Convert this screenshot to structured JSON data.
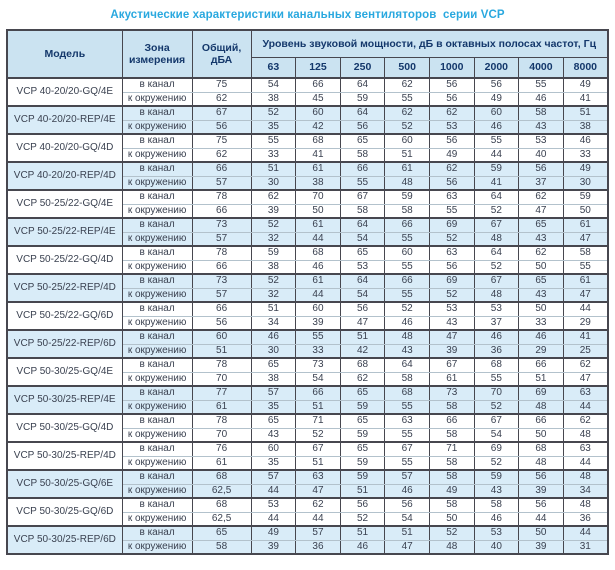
{
  "title": "Акустические характеристики канальных вентиляторов  серии VCP",
  "colors": {
    "title": "#29a8df",
    "header_background": "#cbe3f1",
    "header_text": "#14386b",
    "row_highlight": "#d9ecf8",
    "border_dark": "#47474f",
    "border_light": "#b3c2cc",
    "data_text": "#3a4150",
    "page_background": "#ffffff"
  },
  "table": {
    "headers": {
      "model": "Модель",
      "zone": "Зона измерения",
      "total_line1": "Общий,",
      "total_line2": "дБА",
      "spl": "Уровень звуковой мощности, дБ в октавных полосах частот, Гц",
      "frequencies": [
        "63",
        "125",
        "250",
        "500",
        "1000",
        "2000",
        "4000",
        "8000"
      ]
    },
    "models": [
      {
        "name": "VCP 40-20/20-GQ/4E",
        "highlighted": false,
        "rows": [
          {
            "zone": "в канал",
            "total": "75",
            "values": [
              "54",
              "66",
              "64",
              "62",
              "56",
              "56",
              "55",
              "49"
            ]
          },
          {
            "zone": "к окружению",
            "total": "62",
            "values": [
              "38",
              "45",
              "59",
              "55",
              "56",
              "49",
              "46",
              "41"
            ]
          }
        ]
      },
      {
        "name": "VCP 40-20/20-REP/4E",
        "highlighted": true,
        "rows": [
          {
            "zone": "в канал",
            "total": "67",
            "values": [
              "52",
              "60",
              "64",
              "62",
              "62",
              "60",
              "58",
              "51"
            ]
          },
          {
            "zone": "к окружению",
            "total": "56",
            "values": [
              "35",
              "42",
              "56",
              "52",
              "53",
              "46",
              "43",
              "38"
            ]
          }
        ]
      },
      {
        "name": "VCP 40-20/20-GQ/4D",
        "highlighted": false,
        "rows": [
          {
            "zone": "в канал",
            "total": "75",
            "values": [
              "55",
              "68",
              "65",
              "60",
              "56",
              "55",
              "53",
              "46"
            ]
          },
          {
            "zone": "к окружению",
            "total": "62",
            "values": [
              "33",
              "41",
              "58",
              "51",
              "49",
              "44",
              "40",
              "33"
            ]
          }
        ]
      },
      {
        "name": "VCP 40-20/20-REP/4D",
        "highlighted": true,
        "rows": [
          {
            "zone": "в канал",
            "total": "66",
            "values": [
              "51",
              "61",
              "66",
              "61",
              "62",
              "59",
              "56",
              "49"
            ]
          },
          {
            "zone": "к окружению",
            "total": "57",
            "values": [
              "30",
              "38",
              "55",
              "48",
              "56",
              "41",
              "37",
              "30"
            ]
          }
        ]
      },
      {
        "name": "VCP 50-25/22-GQ/4E",
        "highlighted": false,
        "rows": [
          {
            "zone": "в канал",
            "total": "78",
            "values": [
              "62",
              "70",
              "67",
              "59",
              "63",
              "64",
              "62",
              "59"
            ]
          },
          {
            "zone": "к окружению",
            "total": "66",
            "values": [
              "39",
              "50",
              "58",
              "58",
              "55",
              "52",
              "47",
              "50"
            ]
          }
        ]
      },
      {
        "name": "VCP 50-25/22-REP/4E",
        "highlighted": true,
        "rows": [
          {
            "zone": "в канал",
            "total": "73",
            "values": [
              "52",
              "61",
              "64",
              "66",
              "69",
              "67",
              "65",
              "61"
            ]
          },
          {
            "zone": "к окружению",
            "total": "57",
            "values": [
              "32",
              "44",
              "54",
              "55",
              "52",
              "48",
              "43",
              "47"
            ]
          }
        ]
      },
      {
        "name": "VCP 50-25/22-GQ/4D",
        "highlighted": false,
        "rows": [
          {
            "zone": "в канал",
            "total": "78",
            "values": [
              "59",
              "68",
              "65",
              "60",
              "63",
              "64",
              "62",
              "58"
            ]
          },
          {
            "zone": "к окружению",
            "total": "66",
            "values": [
              "38",
              "46",
              "53",
              "55",
              "56",
              "52",
              "50",
              "55"
            ]
          }
        ]
      },
      {
        "name": "VCP 50-25/22-REP/4D",
        "highlighted": true,
        "rows": [
          {
            "zone": "в канал",
            "total": "73",
            "values": [
              "52",
              "61",
              "64",
              "66",
              "69",
              "67",
              "65",
              "61"
            ]
          },
          {
            "zone": "к окружению",
            "total": "57",
            "values": [
              "32",
              "44",
              "54",
              "55",
              "52",
              "48",
              "43",
              "47"
            ]
          }
        ]
      },
      {
        "name": "VCP 50-25/22-GQ/6D",
        "highlighted": false,
        "rows": [
          {
            "zone": "в канал",
            "total": "66",
            "values": [
              "51",
              "60",
              "56",
              "52",
              "53",
              "53",
              "50",
              "44"
            ]
          },
          {
            "zone": "к окружению",
            "total": "56",
            "values": [
              "34",
              "39",
              "47",
              "46",
              "43",
              "37",
              "33",
              "29"
            ]
          }
        ]
      },
      {
        "name": "VCP 50-25/22-REP/6D",
        "highlighted": true,
        "rows": [
          {
            "zone": "в канал",
            "total": "60",
            "values": [
              "46",
              "55",
              "51",
              "48",
              "47",
              "46",
              "46",
              "41"
            ]
          },
          {
            "zone": "к окружению",
            "total": "51",
            "values": [
              "30",
              "33",
              "42",
              "43",
              "39",
              "36",
              "29",
              "25"
            ]
          }
        ]
      },
      {
        "name": "VCP 50-30/25-GQ/4E",
        "highlighted": false,
        "rows": [
          {
            "zone": "в канал",
            "total": "78",
            "values": [
              "65",
              "73",
              "68",
              "64",
              "67",
              "68",
              "66",
              "62"
            ]
          },
          {
            "zone": "к окружению",
            "total": "70",
            "values": [
              "38",
              "54",
              "62",
              "58",
              "61",
              "55",
              "51",
              "47"
            ]
          }
        ]
      },
      {
        "name": "VCP 50-30/25-REP/4E",
        "highlighted": true,
        "rows": [
          {
            "zone": "в канал",
            "total": "77",
            "values": [
              "57",
              "66",
              "65",
              "68",
              "73",
              "70",
              "69",
              "63"
            ]
          },
          {
            "zone": "к окружению",
            "total": "61",
            "values": [
              "35",
              "51",
              "59",
              "55",
              "58",
              "52",
              "48",
              "44"
            ]
          }
        ]
      },
      {
        "name": "VCP 50-30/25-GQ/4D",
        "highlighted": false,
        "rows": [
          {
            "zone": "в канал",
            "total": "78",
            "values": [
              "65",
              "71",
              "65",
              "63",
              "66",
              "67",
              "66",
              "62"
            ]
          },
          {
            "zone": "к окружению",
            "total": "70",
            "values": [
              "43",
              "52",
              "59",
              "55",
              "58",
              "54",
              "50",
              "48"
            ]
          }
        ]
      },
      {
        "name": "VCP 50-30/25-REP/4D",
        "highlighted": false,
        "rows": [
          {
            "zone": "в канал",
            "total": "76",
            "values": [
              "60",
              "67",
              "65",
              "67",
              "71",
              "69",
              "68",
              "63"
            ]
          },
          {
            "zone": "к окружению",
            "total": "61",
            "values": [
              "35",
              "51",
              "59",
              "55",
              "58",
              "52",
              "48",
              "44"
            ]
          }
        ]
      },
      {
        "name": "VCP 50-30/25-GQ/6E",
        "highlighted": true,
        "rows": [
          {
            "zone": "в канал",
            "total": "68",
            "values": [
              "57",
              "63",
              "59",
              "57",
              "58",
              "59",
              "56",
              "48"
            ]
          },
          {
            "zone": "к окружению",
            "total": "62,5",
            "values": [
              "44",
              "47",
              "51",
              "46",
              "49",
              "43",
              "39",
              "34"
            ]
          }
        ]
      },
      {
        "name": "VCP 50-30/25-GQ/6D",
        "highlighted": false,
        "rows": [
          {
            "zone": "в канал",
            "total": "68",
            "values": [
              "53",
              "62",
              "56",
              "56",
              "58",
              "58",
              "56",
              "48"
            ]
          },
          {
            "zone": "к окружению",
            "total": "62,5",
            "values": [
              "44",
              "44",
              "52",
              "54",
              "50",
              "46",
              "44",
              "36"
            ]
          }
        ]
      },
      {
        "name": "VCP 50-30/25-REP/6D",
        "highlighted": true,
        "rows": [
          {
            "zone": "в канал",
            "total": "65",
            "values": [
              "49",
              "57",
              "51",
              "51",
              "52",
              "53",
              "50",
              "44"
            ]
          },
          {
            "zone": "к окружению",
            "total": "58",
            "values": [
              "39",
              "36",
              "46",
              "47",
              "48",
              "40",
              "39",
              "31"
            ]
          }
        ]
      }
    ]
  }
}
